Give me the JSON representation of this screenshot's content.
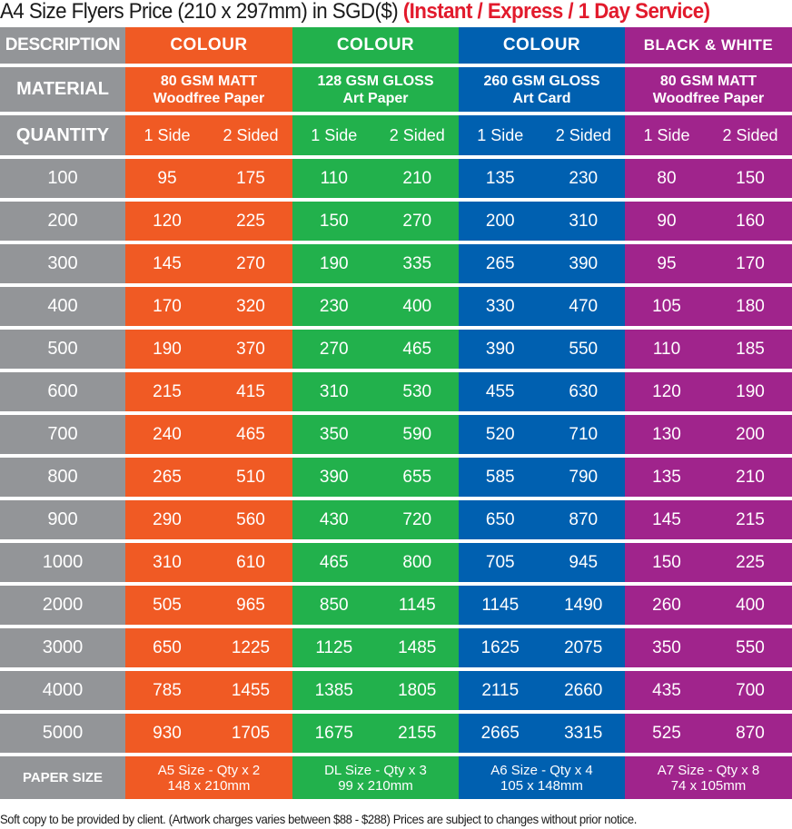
{
  "title": {
    "main": "A4 Size Flyers Price (210 x 297mm) in SGD($) ",
    "accent": "(Instant / Express / 1 Day Service)",
    "accent_color": "#e21a2c"
  },
  "colors": {
    "label_col": "#939598",
    "orange": "#f05a24",
    "green": "#22b14c",
    "blue": "#0060b0",
    "purple": "#a0248c"
  },
  "header": {
    "description": "DESCRIPTION",
    "columns": [
      "COLOUR",
      "COLOUR",
      "COLOUR",
      "BLACK & WHITE"
    ]
  },
  "material": {
    "label": "MATERIAL",
    "columns": [
      {
        "line1": "80 GSM MATT",
        "line2": "Woodfree Paper"
      },
      {
        "line1": "128 GSM GLOSS",
        "line2": "Art Paper"
      },
      {
        "line1": "260 GSM GLOSS",
        "line2": "Art Card"
      },
      {
        "line1": "80 GSM MATT",
        "line2": "Woodfree Paper"
      }
    ]
  },
  "quantity": {
    "label": "QUANTITY",
    "one_side": "1 Side",
    "two_sided": "2 Sided"
  },
  "rows": [
    {
      "qty": "100",
      "v": [
        "95",
        "175",
        "110",
        "210",
        "135",
        "230",
        "80",
        "150"
      ]
    },
    {
      "qty": "200",
      "v": [
        "120",
        "225",
        "150",
        "270",
        "200",
        "310",
        "90",
        "160"
      ]
    },
    {
      "qty": "300",
      "v": [
        "145",
        "270",
        "190",
        "335",
        "265",
        "390",
        "95",
        "170"
      ]
    },
    {
      "qty": "400",
      "v": [
        "170",
        "320",
        "230",
        "400",
        "330",
        "470",
        "105",
        "180"
      ]
    },
    {
      "qty": "500",
      "v": [
        "190",
        "370",
        "270",
        "465",
        "390",
        "550",
        "110",
        "185"
      ]
    },
    {
      "qty": "600",
      "v": [
        "215",
        "415",
        "310",
        "530",
        "455",
        "630",
        "120",
        "190"
      ]
    },
    {
      "qty": "700",
      "v": [
        "240",
        "465",
        "350",
        "590",
        "520",
        "710",
        "130",
        "200"
      ]
    },
    {
      "qty": "800",
      "v": [
        "265",
        "510",
        "390",
        "655",
        "585",
        "790",
        "135",
        "210"
      ]
    },
    {
      "qty": "900",
      "v": [
        "290",
        "560",
        "430",
        "720",
        "650",
        "870",
        "145",
        "215"
      ]
    },
    {
      "qty": "1000",
      "v": [
        "310",
        "610",
        "465",
        "800",
        "705",
        "945",
        "150",
        "225"
      ]
    },
    {
      "qty": "2000",
      "v": [
        "505",
        "965",
        "850",
        "1145",
        "1145",
        "1490",
        "260",
        "400"
      ]
    },
    {
      "qty": "3000",
      "v": [
        "650",
        "1225",
        "1125",
        "1485",
        "1625",
        "2075",
        "350",
        "550"
      ]
    },
    {
      "qty": "4000",
      "v": [
        "785",
        "1455",
        "1385",
        "1805",
        "2115",
        "2660",
        "435",
        "700"
      ]
    },
    {
      "qty": "5000",
      "v": [
        "930",
        "1705",
        "1675",
        "2155",
        "2665",
        "3315",
        "525",
        "870"
      ]
    }
  ],
  "paper_size": {
    "label": "PAPER SIZE",
    "columns": [
      {
        "line1": "A5 Size - Qty x 2",
        "line2": "148 x 210mm"
      },
      {
        "line1": "DL Size - Qty x 3",
        "line2": "99 x 210mm"
      },
      {
        "line1": "A6 Size - Qty x 4",
        "line2": "105 x 148mm"
      },
      {
        "line1": "A7 Size - Qty x 8",
        "line2": "74 x 105mm"
      }
    ]
  },
  "footnote": "Soft copy to be provided by client. (Artwork charges varies between $88 - $288) Prices are subject to changes without prior notice."
}
